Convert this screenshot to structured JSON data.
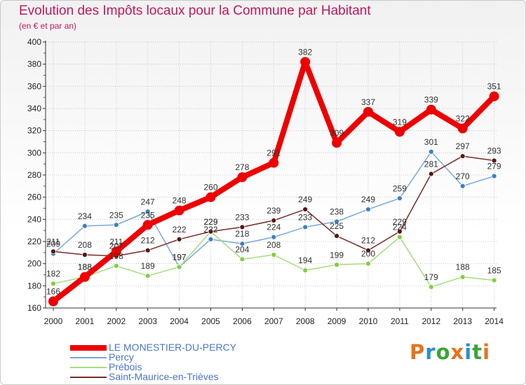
{
  "title": "Evolution des Impôts locaux pour la Commune par Habitant",
  "subtitle": "(en € et par an)",
  "colors": {
    "title": "#c2175b",
    "grid": "#c8c8c8",
    "axis": "#333333",
    "legend_text": "#4a76c8"
  },
  "brand": {
    "text": "Proxiti",
    "letter_colors": [
      "#e8721c",
      "#2a8fd6",
      "#3aa535",
      "#e8721c",
      "#2a8fd6",
      "#3aa535",
      "#e8721c"
    ]
  },
  "chart_data": {
    "type": "line",
    "title": "Evolution des Impôts locaux pour la Commune par Habitant",
    "subtitle": "(en € et par an)",
    "xlabel": "",
    "ylabel": "",
    "categories": [
      "2000",
      "2001",
      "2002",
      "2003",
      "2004",
      "2005",
      "2006",
      "2007",
      "2008",
      "2009",
      "2010",
      "2011",
      "2012",
      "2013",
      "2014"
    ],
    "ylim": [
      160,
      400
    ],
    "yticks": [
      160,
      180,
      200,
      220,
      240,
      260,
      280,
      300,
      320,
      340,
      360,
      380,
      400
    ],
    "grid": true,
    "legend_position": "bottom-left",
    "series": [
      {
        "name": "LE MONESTIER-DU-PERCY",
        "color": "#ee0000",
        "values": [
          166,
          188,
          211,
          235,
          248,
          260,
          278,
          291,
          382,
          309,
          337,
          319,
          339,
          322,
          351
        ]
      },
      {
        "name": "Percy",
        "color": "#7aa9d9",
        "marker": "#3d7fc4",
        "values": [
          209,
          234,
          235,
          247,
          197,
          222,
          218,
          224,
          233,
          238,
          249,
          259,
          301,
          270,
          279
        ]
      },
      {
        "name": "Prébois",
        "color": "#a7dc7c",
        "marker": "#7fcf43",
        "values": [
          182,
          188,
          198,
          189,
          197,
          229,
          204,
          208,
          194,
          199,
          200,
          224,
          179,
          188,
          185
        ]
      },
      {
        "name": "Saint-Maurice-en-Trièves",
        "color": "#7a2a2a",
        "marker": "#5a1414",
        "values": [
          211,
          208,
          207,
          212,
          222,
          229,
          233,
          239,
          249,
          225,
          212,
          229,
          281,
          297,
          293
        ]
      }
    ]
  }
}
